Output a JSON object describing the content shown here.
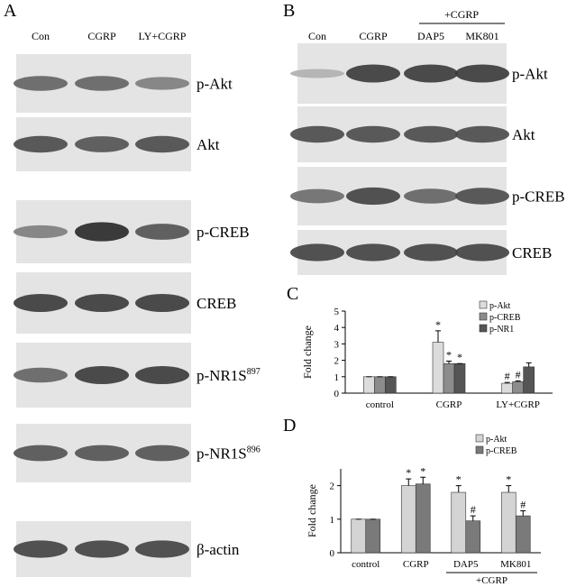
{
  "panel_a": {
    "label": "A",
    "lanes": [
      "Con",
      "CGRP",
      "LY+CGRP"
    ],
    "rows": [
      {
        "text": "p-Akt"
      },
      {
        "text": "Akt"
      },
      {
        "text": "p-CREB"
      },
      {
        "text": "CREB"
      },
      {
        "text": "p-NR1S",
        "sup": "897"
      },
      {
        "text": "p-NR1S",
        "sup": "896"
      },
      {
        "text": "β-actin"
      }
    ]
  },
  "panel_b": {
    "label": "B",
    "lanes": [
      "Con",
      "CGRP",
      "DAP5",
      "MK801"
    ],
    "group_label": "+CGRP",
    "rows": [
      {
        "text": "p-Akt"
      },
      {
        "text": "Akt"
      },
      {
        "text": "p-CREB"
      },
      {
        "text": "CREB"
      }
    ]
  },
  "chart_data": [
    {
      "type": "bar",
      "panel_label": "C",
      "ylabel": "Fold change",
      "categories": [
        "control",
        "CGRP",
        "LY+CGRP"
      ],
      "ylim": [
        0,
        5
      ],
      "yticks": [
        0,
        1,
        2,
        3,
        4,
        5
      ],
      "legend": "top-right",
      "series": [
        {
          "name": "p-Akt",
          "color": "#dcdcdc",
          "values": [
            1,
            3.1,
            0.6
          ],
          "errors": [
            0,
            0.7,
            0.05
          ],
          "annotations": [
            null,
            "*",
            "#"
          ]
        },
        {
          "name": "p-CREB",
          "color": "#8c8c8c",
          "values": [
            1,
            1.8,
            0.7
          ],
          "errors": [
            0,
            0.15,
            0.05
          ],
          "annotations": [
            null,
            "*",
            "#"
          ]
        },
        {
          "name": "p-NR1",
          "color": "#555555",
          "values": [
            1,
            1.8,
            1.6
          ],
          "errors": [
            0,
            0,
            0.25
          ],
          "annotations": [
            null,
            "*",
            null
          ]
        }
      ]
    },
    {
      "type": "bar",
      "panel_label": "D",
      "ylabel": "Fold change",
      "categories": [
        "control",
        "CGRP",
        "DAP5",
        "MK801"
      ],
      "group_label": "+CGRP",
      "ylim": [
        0,
        2.5
      ],
      "yticks": [
        0,
        1,
        2
      ],
      "legend": "top-right",
      "series": [
        {
          "name": "p-Akt",
          "color": "#d4d4d4",
          "values": [
            1,
            2.0,
            1.8,
            1.8
          ],
          "errors": [
            0,
            0.2,
            0.2,
            0.2
          ],
          "annotations": [
            null,
            "*",
            "*",
            "*"
          ]
        },
        {
          "name": "p-CREB",
          "color": "#7a7a7a",
          "values": [
            1,
            2.05,
            0.95,
            1.1
          ],
          "errors": [
            0,
            0.2,
            0.15,
            0.15
          ],
          "annotations": [
            null,
            "*",
            "#",
            "#"
          ]
        }
      ]
    }
  ]
}
